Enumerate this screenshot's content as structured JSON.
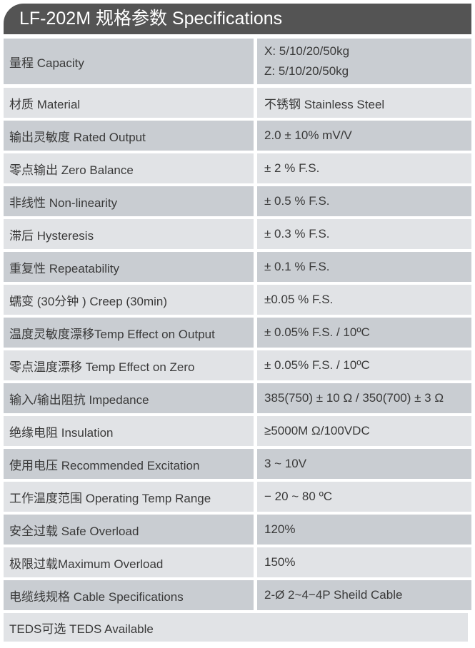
{
  "title": "LF-202M 规格参数 Specifications",
  "colors": {
    "header": "#545454",
    "row_dark": "#c9cdd2",
    "row_light": "#e1e3e6"
  },
  "rows": [
    {
      "label": "量程 Capacity",
      "values": [
        "X: 5/10/20/50kg",
        "Z: 5/10/20/50kg"
      ]
    },
    {
      "label": "材质 Material",
      "value": "不锈钢 Stainless Steel"
    },
    {
      "label": "输出灵敏度 Rated Output",
      "value": "2.0 ± 10% mV/V"
    },
    {
      "label": "零点输出  Zero Balance",
      "value": "± 2 % F.S."
    },
    {
      "label": "非线性 Non-linearity",
      "value": "± 0.5 % F.S."
    },
    {
      "label": "滞后 Hysteresis",
      "value": "± 0.3 % F.S."
    },
    {
      "label": "重复性 Repeatability",
      "value": "± 0.1 % F.S."
    },
    {
      "label": "蠕变 (30分钟 ) Creep (30min)",
      "value": "±0.05  % F.S."
    },
    {
      "label": "温度灵敏度漂移Temp Effect on Output",
      "value": "± 0.05% F.S. / 10ºC"
    },
    {
      "label": "零点温度漂移 Temp Effect on Zero",
      "value": "± 0.05% F.S. / 10ºC"
    },
    {
      "label": "输入/输出阻抗 Impedance",
      "value": "385(750) ± 10 Ω  / 350(700) ± 3 Ω"
    },
    {
      "label": "绝缘电阻  Insulation",
      "value": "≥5000M Ω/100VDC"
    },
    {
      "label": "使用电压 Recommended Excitation",
      "value": "3 ~ 10V"
    },
    {
      "label": "工作温度范围 Operating Temp  Range",
      "value": "− 20 ~ 80 ºC"
    },
    {
      "label": "安全过载 Safe Overload",
      "value": "120%"
    },
    {
      "label": "极限过载Maximum Overload",
      "value": "150%"
    },
    {
      "label": "电缆线规格 Cable Specifications",
      "value": "2-Ø 2~4−4P Sheild Cable"
    }
  ],
  "footer_row": "TEDS可选 TEDS Available"
}
